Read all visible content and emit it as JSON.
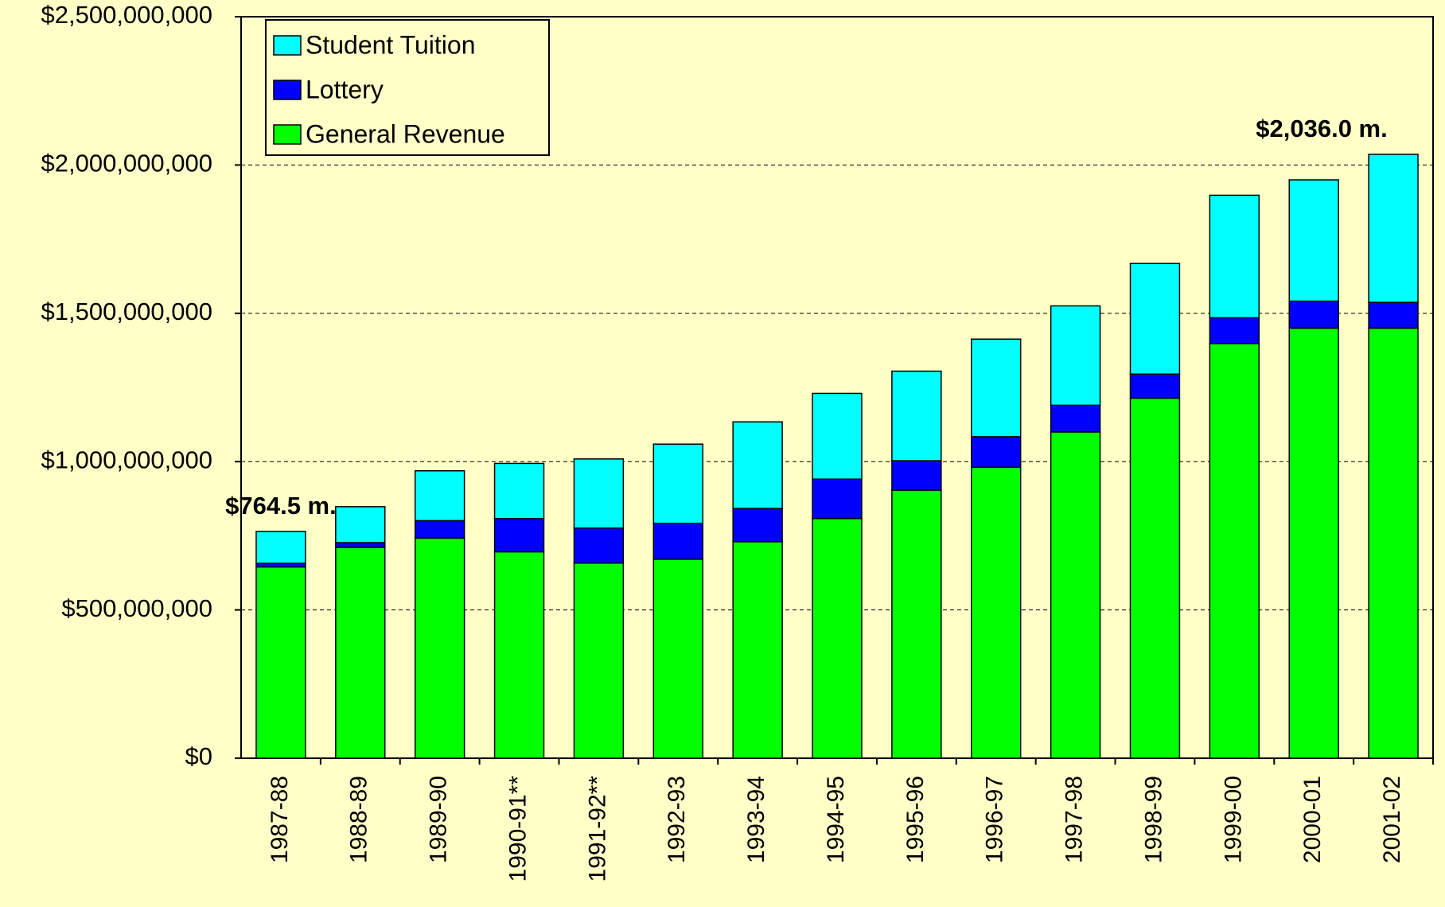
{
  "chart_data": {
    "type": "stacked_bar",
    "categories": [
      "1987-88",
      "1988-89",
      "1989-90",
      "1990-91**",
      "1991-92**",
      "1992-93",
      "1993-94",
      "1994-95",
      "1995-96",
      "1996-97",
      "1997-98",
      "1998-99",
      "1999-00",
      "2000-01",
      "2001-02"
    ],
    "series": [
      {
        "name": "General Revenue",
        "color": "#00ff00",
        "values": [
          645000000,
          711000000,
          742000000,
          696000000,
          658000000,
          671000000,
          730000000,
          808000000,
          904000000,
          981000000,
          1100000000,
          1214000000,
          1398000000,
          1450000000,
          1450000000
        ]
      },
      {
        "name": "Lottery",
        "color": "#0000ff",
        "values": [
          12000000,
          16000000,
          59000000,
          112000000,
          118000000,
          121000000,
          112000000,
          133000000,
          99000000,
          103000000,
          90000000,
          81000000,
          87000000,
          91000000,
          87000000
        ]
      },
      {
        "name": "Student Tuition",
        "color": "#00ffff",
        "values": [
          107500000,
          121000000,
          168000000,
          186000000,
          233000000,
          267000000,
          292000000,
          289000000,
          302000000,
          329000000,
          335000000,
          373000000,
          413000000,
          409000000,
          499000000
        ]
      }
    ],
    "annotations": [
      {
        "text": "$764.5 m.",
        "x": "1987-88"
      },
      {
        "text": "$2,036.0 m.",
        "x": "2001-02"
      }
    ],
    "ylim": [
      0,
      2500000000
    ],
    "yticks": [
      {
        "value": 0,
        "label": "$0"
      },
      {
        "value": 500000000,
        "label": "$500,000,000"
      },
      {
        "value": 1000000000,
        "label": "$1,000,000,000"
      },
      {
        "value": 1500000000,
        "label": "$1,500,000,000"
      },
      {
        "value": 2000000000,
        "label": "$2,000,000,000"
      },
      {
        "value": 2500000000,
        "label": "$2,500,000,000"
      }
    ],
    "grid": true,
    "legend": "upper left"
  }
}
